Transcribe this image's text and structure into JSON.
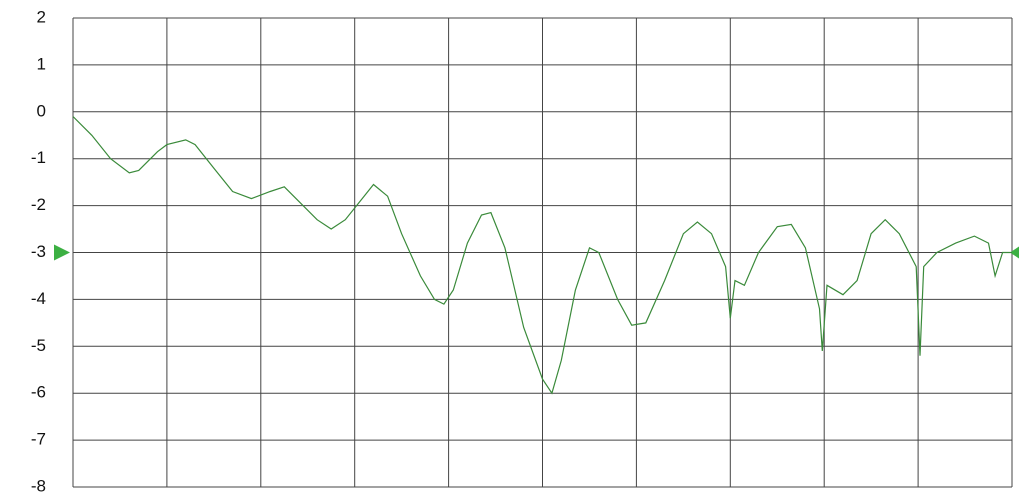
{
  "chart_data": {
    "type": "line",
    "x": [
      0,
      2,
      4,
      6,
      7,
      9,
      10,
      12,
      13,
      15,
      17,
      19,
      21,
      22.5,
      24,
      26,
      27.5,
      29,
      31,
      32,
      33.5,
      35,
      37,
      38.5,
      39.5,
      40.5,
      42,
      43.5,
      44.5,
      46,
      48,
      50,
      51,
      52,
      53.5,
      55,
      56,
      58,
      59.5,
      61,
      63,
      65,
      66.5,
      68,
      69.5,
      70,
      70.5,
      71.5,
      73,
      75,
      76.5,
      78,
      79.5,
      79.8,
      80.3,
      82,
      83.5,
      85,
      86.5,
      88,
      89.8,
      90.2,
      90.6,
      92,
      94,
      96,
      97.5,
      98.2,
      99,
      100
    ],
    "series": [
      {
        "color": "#3a8a3a",
        "values": [
          -0.1,
          -0.5,
          -1.0,
          -1.3,
          -1.25,
          -0.85,
          -0.7,
          -0.6,
          -0.7,
          -1.2,
          -1.7,
          -1.85,
          -1.7,
          -1.6,
          -1.9,
          -2.3,
          -2.5,
          -2.3,
          -1.8,
          -1.55,
          -1.8,
          -2.6,
          -3.5,
          -4.0,
          -4.1,
          -3.8,
          -2.8,
          -2.2,
          -2.15,
          -2.9,
          -4.6,
          -5.7,
          -6.0,
          -5.3,
          -3.8,
          -2.9,
          -3.0,
          -4.0,
          -4.55,
          -4.5,
          -3.6,
          -2.6,
          -2.35,
          -2.6,
          -3.3,
          -4.4,
          -3.6,
          -3.7,
          -3.0,
          -2.45,
          -2.4,
          -2.9,
          -4.2,
          -5.1,
          -3.7,
          -3.9,
          -3.6,
          -2.6,
          -2.3,
          -2.6,
          -3.3,
          -5.2,
          -3.3,
          -3.0,
          -2.8,
          -2.65,
          -2.8,
          -3.5,
          -3.0,
          -3.0
        ]
      }
    ],
    "xlim": [
      0,
      100
    ],
    "xticks": [
      0,
      10,
      20,
      30,
      40,
      50,
      60,
      70,
      80,
      90,
      100
    ],
    "ylim": [
      -8,
      2
    ],
    "yticks": [
      -8,
      -7,
      -6,
      -5,
      -4,
      -3,
      -2,
      -1,
      0,
      1,
      2
    ],
    "reference_level": -3,
    "grid": true
  }
}
